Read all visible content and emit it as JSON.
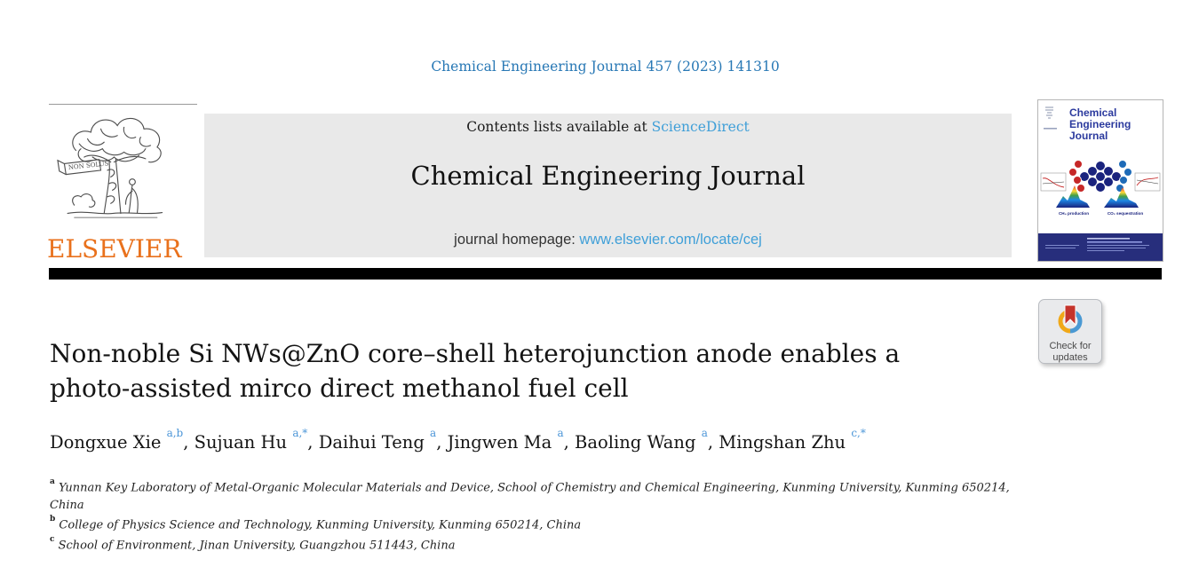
{
  "page": {
    "citation": "Chemical Engineering Journal 457 (2023) 141310"
  },
  "masthead": {
    "contents_prefix": "Contents lists available at ",
    "contents_link": "ScienceDirect",
    "journal_title": "Chemical Engineering Journal",
    "homepage_prefix": "journal homepage: ",
    "homepage_link": "www.elsevier.com/locate/cej"
  },
  "elsevier": {
    "name": "ELSEVIER",
    "motto": "NON SOLUS"
  },
  "cover": {
    "title_line1": "Chemical",
    "title_line2": "Engineering",
    "title_line3": "Journal",
    "label_left": "CH₄ production",
    "label_right": "CO₂ sequestration"
  },
  "badge": {
    "line1": "Check for",
    "line2": "updates"
  },
  "article": {
    "title_line1": "Non-noble Si NWs@ZnO core–shell heterojunction anode enables a",
    "title_line2": "photo-assisted mirco direct methanol fuel cell",
    "authors": [
      {
        "name": "Dongxue Xie",
        "sup": "a,b"
      },
      {
        "name": "Sujuan Hu",
        "sup": "a,*"
      },
      {
        "name": "Daihui Teng",
        "sup": "a"
      },
      {
        "name": "Jingwen Ma",
        "sup": "a"
      },
      {
        "name": "Baoling Wang",
        "sup": "a"
      },
      {
        "name": "Mingshan Zhu",
        "sup": "c,*"
      }
    ],
    "affiliations": [
      {
        "sup": "a",
        "text": "Yunnan Key Laboratory of Metal-Organic Molecular Materials and Device, School of Chemistry and Chemical Engineering, Kunming University, Kunming 650214, China"
      },
      {
        "sup": "b",
        "text": "College of Physics Science and Technology, Kunming University, Kunming 650214, China"
      },
      {
        "sup": "c",
        "text": "School of Environment, Jinan University, Guangzhou 511443, China"
      }
    ]
  },
  "colors": {
    "citation_blue": "#2878b5",
    "link_blue": "#3f9fd8",
    "elsevier_orange": "#e9711c",
    "superscript_blue": "#4c96d8",
    "masthead_gray": "#e9e9e9",
    "rule_black": "#000000",
    "cover_navy": "#272e7c",
    "cover_title_blue": "#2b3a9e",
    "badge_bg": "#e9eaec",
    "badge_text": "#4a4a4a",
    "crossmark_yellow": "#f0a818",
    "crossmark_blue": "#4a99d3",
    "crossmark_red": "#c4342b"
  }
}
